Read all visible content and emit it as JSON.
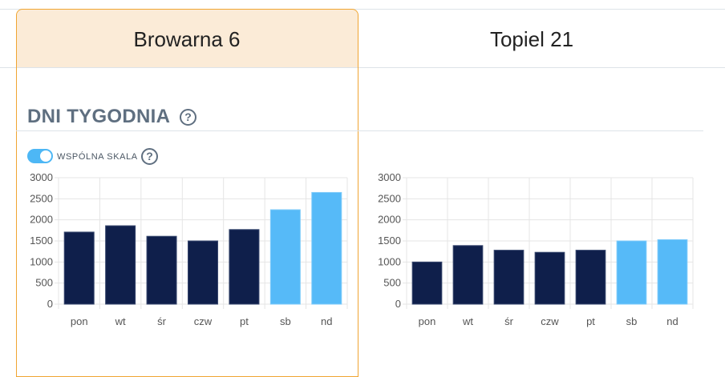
{
  "columns": [
    {
      "title": "Browarna 6",
      "selected": true
    },
    {
      "title": "Topiel 21",
      "selected": false
    }
  ],
  "section": {
    "title": "DNI TYGODNIA",
    "help_icon": "question-circle-icon"
  },
  "toggle": {
    "label": "WSPÓLNA SKALA",
    "on": true
  },
  "colors": {
    "weekday": "#0f1f4b",
    "weekend": "#56baf8",
    "accent": "#f0a532",
    "header_bg": "#fbebd7"
  },
  "chart_data": [
    {
      "type": "bar",
      "title": "Browarna 6",
      "categories": [
        "pon",
        "wt",
        "śr",
        "czw",
        "pt",
        "sb",
        "nd"
      ],
      "values": [
        1710,
        1860,
        1610,
        1500,
        1770,
        2240,
        2650
      ],
      "ylim": [
        0,
        3000
      ],
      "yticks": [
        "0",
        "500",
        "1000",
        "1500",
        "2000",
        "2500",
        "3000"
      ],
      "grid": true
    },
    {
      "type": "bar",
      "title": "Topiel 21",
      "categories": [
        "pon",
        "wt",
        "śr",
        "czw",
        "pt",
        "sb",
        "nd"
      ],
      "values": [
        1000,
        1390,
        1280,
        1230,
        1280,
        1500,
        1530
      ],
      "ylim": [
        0,
        3000
      ],
      "yticks": [
        "0",
        "500",
        "1000",
        "1500",
        "2000",
        "2500",
        "3000"
      ],
      "grid": true
    }
  ]
}
